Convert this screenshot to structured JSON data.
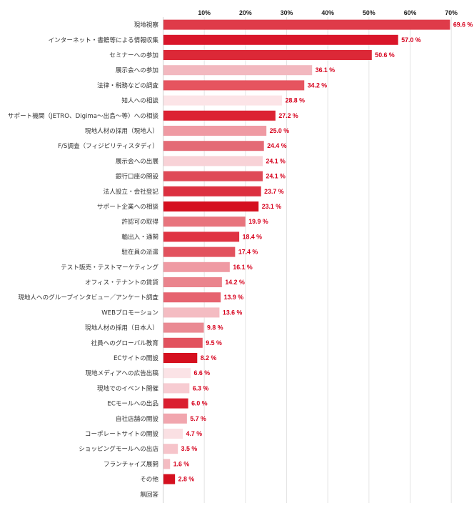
{
  "chart_data": {
    "type": "bar",
    "orientation": "horizontal",
    "title": "",
    "xlabel": "",
    "ylabel": "",
    "xlim": [
      0,
      70
    ],
    "ticks": [
      "10%",
      "20%",
      "30%",
      "40%",
      "50%",
      "60%",
      "70%"
    ],
    "tick_values": [
      10,
      20,
      30,
      40,
      50,
      60,
      70
    ],
    "grid": true,
    "value_suffix": " %",
    "categories": [
      "現地視察",
      "インターネット・書籍等による情報収集",
      "セミナーへの参加",
      "展示会への参加",
      "法律・税務などの調査",
      "知人への相談",
      "サポート機関（JETRO、Digima～出島～等）への相談",
      "現地人材の採用（現地人）",
      "F/S調査（フィジビリティスタディ）",
      "展示会への出展",
      "銀行口座の開設",
      "法人設立・会社登記",
      "サポート企業への相談",
      "許認可の取得",
      "輸出入・通関",
      "駐在員の派遣",
      "テスト販売・テストマーケティング",
      "オフィス・テナントの賃貸",
      "現地人へのグループインタビュー／アンケート調査",
      "WEBプロモーション",
      "現地人材の採用（日本人）",
      "社員へのグローバル教育",
      "ECサイトの開設",
      "現地メディアへの広告出稿",
      "現地でのイベント開催",
      "ECモールへの出品",
      "自社店舗の開設",
      "コーポレートサイトの開設",
      "ショッピングモールへの出店",
      "フランチャイズ展開",
      "その他",
      "無回答"
    ],
    "values": [
      69.6,
      57.0,
      50.6,
      36.1,
      34.2,
      28.8,
      27.2,
      25.0,
      24.4,
      24.1,
      24.1,
      23.7,
      23.1,
      19.9,
      18.4,
      17.4,
      16.1,
      14.2,
      13.9,
      13.6,
      9.8,
      9.5,
      8.2,
      6.6,
      6.3,
      6.0,
      5.7,
      4.7,
      3.5,
      1.6,
      2.8,
      null
    ],
    "value_labels": [
      "69.6 %",
      "57.0 %",
      "50.6 %",
      "36.1 %",
      "34.2 %",
      "28.8 %",
      "27.2 %",
      "25.0 %",
      "24.4 %",
      "24.1 %",
      "24.1 %",
      "23.7 %",
      "23.1 %",
      "19.9 %",
      "18.4 %",
      "17.4 %",
      "16.1 %",
      "14.2 %",
      "13.9 %",
      "13.6 %",
      "9.8 %",
      "9.5 %",
      "8.2 %",
      "6.6 %",
      "6.3 %",
      "6.0 %",
      "5.7 %",
      "4.7 %",
      "3.5 %",
      "1.6 %",
      "2.8 %",
      ""
    ],
    "colors": [
      "#df3b49",
      "#d9162a",
      "#dc2837",
      "#f2b8bf",
      "#e6545f",
      "#fce4e7",
      "#dc2232",
      "#ef9aa3",
      "#e46a75",
      "#f8d2d7",
      "#df4a57",
      "#dc3040",
      "#d5101f",
      "#e8747d",
      "#df3342",
      "#e2525e",
      "#ef9aa3",
      "#ea848d",
      "#e6636f",
      "#f4bcc2",
      "#ea8a93",
      "#e2525e",
      "#d5101f",
      "#fbe3e6",
      "#f7ccd2",
      "#da1f30",
      "#f1a6ae",
      "#fae0e3",
      "#f6c4ca",
      "#f4bcc2",
      "#d5101f",
      "#ffffff"
    ]
  }
}
